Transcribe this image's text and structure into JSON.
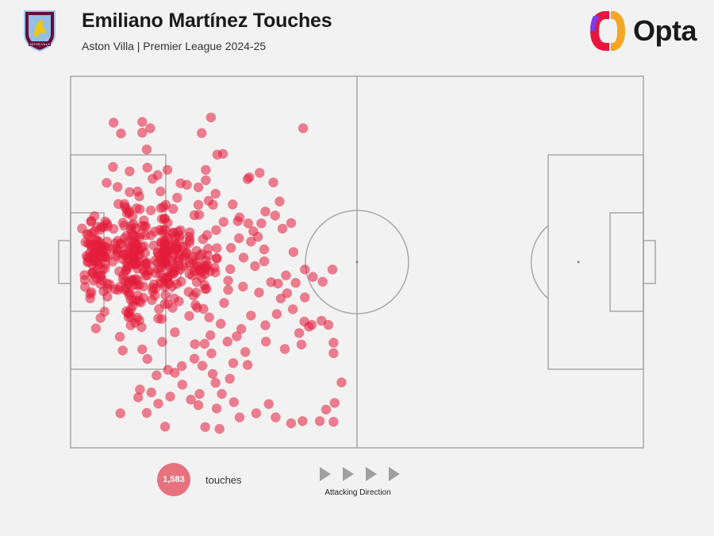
{
  "header": {
    "title": "Emiliano Martínez Touches",
    "subtitle": "Aston Villa | Premier League 2024-25"
  },
  "brand": {
    "name": "Opta",
    "crest_icon": "aston-villa-crest-icon",
    "logo_icon": "opta-logo-icon",
    "accent_colors": [
      "#e5173f",
      "#7d3cf0",
      "#f5a623"
    ]
  },
  "footer": {
    "touch_count": "1,583",
    "touch_label": "touches",
    "direction_label": "Attacking Direction",
    "direction_icon": "play-arrow-icon"
  },
  "chart_data": {
    "type": "scatter",
    "title": "Emiliano Martínez Touches",
    "subtitle": "Aston Villa | Premier League 2024-25",
    "xlabel": "",
    "ylabel": "",
    "xlim": [
      0,
      100
    ],
    "ylim": [
      0,
      100
    ],
    "grid": false,
    "legend": "none",
    "marker_color": "#e31b3b",
    "total_touches": 1583,
    "series": [
      {
        "values": [
          [
            7.5,
            87.5
          ],
          [
            12.5,
            87.7
          ],
          [
            24.5,
            88.9
          ],
          [
            12.5,
            84.8
          ],
          [
            13.9,
            86.0
          ],
          [
            8.8,
            84.6
          ],
          [
            22.9,
            84.7
          ],
          [
            40.6,
            86.0
          ],
          [
            25.6,
            78.9
          ],
          [
            26.6,
            79.1
          ],
          [
            6.3,
            71.3
          ],
          [
            7.4,
            75.6
          ],
          [
            10.3,
            74.4
          ],
          [
            14.3,
            72.4
          ],
          [
            16.9,
            74.8
          ],
          [
            15.2,
            73.4
          ],
          [
            13.4,
            75.4
          ],
          [
            10.3,
            68.8
          ],
          [
            8.2,
            70.2
          ],
          [
            12.0,
            67.7
          ],
          [
            18.6,
            67.3
          ],
          [
            33.0,
            74.0
          ],
          [
            31.2,
            72.8
          ],
          [
            35.4,
            71.4
          ],
          [
            20.3,
            70.8
          ],
          [
            22.3,
            70.1
          ],
          [
            23.6,
            72.0
          ],
          [
            25.3,
            68.4
          ],
          [
            24.1,
            66.5
          ],
          [
            31.9,
            58.3
          ],
          [
            35.7,
            62.5
          ],
          [
            38.5,
            60.5
          ],
          [
            28.3,
            65.5
          ],
          [
            29.5,
            62.0
          ],
          [
            21.6,
            62.6
          ],
          [
            25.4,
            58.6
          ],
          [
            31.5,
            55.5
          ],
          [
            38.9,
            52.7
          ],
          [
            42.3,
            46.0
          ],
          [
            40.9,
            48.0
          ],
          [
            37.6,
            46.4
          ],
          [
            44.0,
            44.7
          ],
          [
            40.9,
            40.5
          ],
          [
            38.8,
            37.3
          ],
          [
            36.7,
            40.2
          ],
          [
            32.9,
            41.8
          ],
          [
            30.1,
            43.4
          ],
          [
            27.5,
            45.0
          ],
          [
            43.8,
            34.2
          ],
          [
            45.9,
            28.3
          ],
          [
            45.0,
            33.1
          ],
          [
            42.1,
            33.1
          ],
          [
            39.9,
            30.9
          ],
          [
            40.3,
            27.8
          ],
          [
            37.4,
            26.6
          ],
          [
            34.1,
            28.6
          ],
          [
            29.8,
            32.0
          ],
          [
            26.2,
            33.4
          ],
          [
            24.2,
            35.1
          ],
          [
            21.8,
            38.4
          ],
          [
            17.8,
            37.7
          ],
          [
            15.9,
            34.7
          ],
          [
            18.2,
            31.1
          ],
          [
            21.7,
            27.9
          ],
          [
            24.6,
            25.4
          ],
          [
            28.4,
            22.8
          ],
          [
            30.9,
            22.3
          ],
          [
            16.0,
            28.5
          ],
          [
            12.5,
            26.5
          ],
          [
            9.1,
            26.2
          ],
          [
            8.6,
            29.9
          ],
          [
            12.4,
            32.5
          ],
          [
            13.4,
            23.9
          ],
          [
            18.2,
            20.2
          ],
          [
            23.0,
            22.1
          ],
          [
            24.8,
            19.9
          ],
          [
            27.8,
            18.6
          ],
          [
            22.5,
            14.5
          ],
          [
            25.5,
            10.6
          ],
          [
            22.3,
            11.5
          ],
          [
            17.4,
            13.8
          ],
          [
            14.1,
            14.9
          ],
          [
            11.8,
            13.6
          ],
          [
            12.1,
            15.7
          ],
          [
            13.3,
            9.4
          ],
          [
            8.7,
            9.3
          ],
          [
            16.5,
            5.7
          ],
          [
            23.5,
            5.6
          ],
          [
            26.0,
            5.1
          ],
          [
            29.5,
            8.2
          ],
          [
            32.4,
            9.3
          ],
          [
            34.6,
            11.8
          ],
          [
            35.8,
            8.2
          ],
          [
            38.5,
            6.6
          ],
          [
            40.5,
            7.2
          ],
          [
            43.5,
            7.2
          ],
          [
            46.1,
            12.1
          ],
          [
            47.3,
            17.6
          ],
          [
            40.8,
            34.0
          ],
          [
            45.9,
            7.0
          ],
          [
            45.7,
            48.0
          ],
          [
            45.9,
            25.5
          ],
          [
            44.6,
            10.3
          ],
          [
            41.6,
            32.6
          ],
          [
            13.3,
            80.3
          ],
          [
            11.7,
            69.0
          ],
          [
            30.9,
            72.3
          ],
          [
            36.5,
            66.3
          ],
          [
            26.7,
            60.8
          ],
          [
            32.7,
            56.8
          ],
          [
            34.0,
            63.6
          ],
          [
            37.0,
            59.0
          ],
          [
            29.2,
            61.0
          ],
          [
            20.8,
            58.0
          ],
          [
            19.2,
            48.0
          ],
          [
            17.0,
            46.0
          ],
          [
            14.5,
            44.0
          ],
          [
            12.0,
            39.5
          ],
          [
            10.5,
            33.0
          ],
          [
            10.8,
            57.3
          ],
          [
            11.4,
            54.5
          ],
          [
            16.4,
            55.8
          ],
          [
            14.0,
            57.2
          ],
          [
            9.8,
            50.0
          ],
          [
            32.2,
            48.9
          ],
          [
            33.8,
            53.4
          ],
          [
            35.0,
            44.6
          ],
          [
            28.0,
            53.8
          ],
          [
            27.5,
            42.5
          ],
          [
            26.8,
            39.0
          ],
          [
            31.5,
            35.6
          ],
          [
            34.0,
            33.0
          ],
          [
            36.0,
            36.0
          ],
          [
            29.0,
            30.0
          ],
          [
            27.4,
            28.6
          ],
          [
            30.5,
            25.8
          ],
          [
            21.6,
            24.0
          ],
          [
            19.4,
            22.0
          ],
          [
            17.0,
            21.0
          ],
          [
            15.0,
            19.5
          ],
          [
            19.5,
            17.0
          ],
          [
            21.0,
            13.0
          ],
          [
            15.3,
            11.9
          ],
          [
            25.3,
            17.5
          ],
          [
            26.4,
            14.5
          ],
          [
            28.5,
            12.3
          ],
          [
            24.4,
            30.3
          ],
          [
            23.4,
            28.0
          ],
          [
            8.5,
            47.5
          ],
          [
            9.3,
            52.0
          ],
          [
            8.3,
            42.5
          ],
          [
            16.0,
            50.5
          ],
          [
            18.5,
            53.5
          ],
          [
            22.0,
            50.0
          ],
          [
            24.0,
            53.6
          ],
          [
            23.4,
            46.7
          ],
          [
            21.9,
            41.8
          ],
          [
            20.7,
            35.5
          ],
          [
            18.9,
            39.4
          ],
          [
            22.3,
            65.4
          ],
          [
            17.9,
            64.3
          ],
          [
            14.0,
            63.9
          ],
          [
            10.8,
            62.3
          ],
          [
            9.4,
            65.6
          ],
          [
            12.8,
            61.2
          ],
          [
            15.7,
            69.0
          ],
          [
            19.2,
            71.2
          ],
          [
            23.6,
            74.8
          ],
          [
            36.2,
            44.2
          ],
          [
            37.8,
            41.6
          ],
          [
            39.3,
            44.4
          ],
          [
            33.8,
            50.2
          ],
          [
            30.2,
            51.2
          ],
          [
            29.4,
            56.4
          ],
          [
            31.0,
            60.4
          ],
          [
            33.3,
            60.4
          ]
        ]
      }
    ]
  }
}
